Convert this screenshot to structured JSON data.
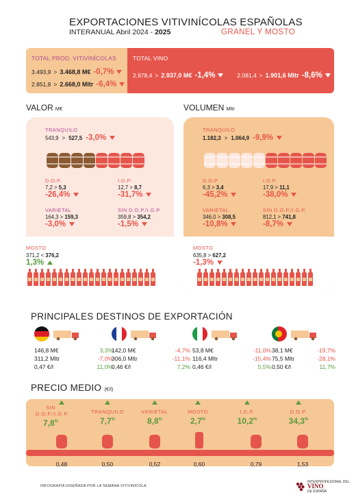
{
  "header": {
    "title": "EXPORTACIONES VITIVINÍCOLAS ESPAÑOLAS",
    "subtitle_prefix": "INTERANUAL Abril 2024 - ",
    "subtitle_year": "2025",
    "tag": "GRANEL Y MOSTO"
  },
  "totals": {
    "left": {
      "label": "TOTAL PROD. VITIVINÍCOLAS",
      "rows": [
        {
          "from": "3.493,9",
          "to": "3.468,8 M€",
          "pct": "-0,7%"
        },
        {
          "from": "2.851,8",
          "to": "2.668,0 Mltr",
          "pct": "-6,4%"
        }
      ]
    },
    "right": {
      "label": "TOTAL VINO",
      "rows": [
        {
          "from": "2.978,4",
          "to": "2.937,0 M€",
          "pct": "-1,4%"
        },
        {
          "from": "2.081,4",
          "to": "1.901,6 Mltr",
          "pct": "-8,6%"
        }
      ]
    }
  },
  "valor": {
    "heading": "VALOR",
    "unit": "M€",
    "tranquilo": {
      "label": "TRANQUILO",
      "from": "543,9",
      "to": "527,5",
      "pct": "-3,0%"
    },
    "dop": {
      "label": "D.O.P.",
      "from": "7,2",
      "to": "5,3",
      "pct": "-26,4%"
    },
    "igp": {
      "label": "I.G.P.",
      "from": "12,7",
      "to": "8,7",
      "pct": "-31,7%"
    },
    "varietal": {
      "label": "VARIETAL",
      "from": "164,3",
      "to": "159,3",
      "pct": "-3,0%"
    },
    "sin": {
      "label": "SIN D.O.P./I.G.P.",
      "from": "359,8",
      "to": "354,2",
      "pct": "-1,5%"
    },
    "mosto": {
      "label": "MOSTO",
      "from": "371,2",
      "sep": " < ",
      "to": "376,2",
      "pct": "1,3%"
    }
  },
  "volumen": {
    "heading": "VOLUMEN",
    "unit": "Mltr",
    "tranquilo": {
      "label": "TRANQUILO",
      "from": "1.182,3",
      "to": "1.064,9",
      "pct": "-9,9%"
    },
    "dop": {
      "label": "D.O.P.",
      "from": "6,3",
      "to": "3,4",
      "pct": "-45,2%"
    },
    "igp": {
      "label": "I.G.P.",
      "from": "17,9",
      "to": "11,1",
      "pct": "-38,0%"
    },
    "varietal": {
      "label": "VARIETAL",
      "from": "346,0",
      "to": "308,5",
      "pct": "-10,8%"
    },
    "sin": {
      "label": "SIN D.O.P./I.G.P.",
      "from": "812,1",
      "to": "741,8",
      "pct": "-8,7%"
    },
    "mosto": {
      "label": "MOSTO",
      "from": "635,8",
      "to": "627,2",
      "pct": "-1,3%"
    }
  },
  "destinos": {
    "heading": "PRINCIPALES DESTINOS DE EXPORTACIÓN",
    "items": [
      {
        "country": "germany",
        "value": "146,8 M€",
        "value_pct": "3,3%",
        "volume": "311,2 Mltr",
        "volume_pct": "-7,0%",
        "price": "0,47 €/l",
        "price_pct": "11,0%"
      },
      {
        "country": "france",
        "value": "142,0 M€",
        "value_pct": "-4,7%",
        "volume": "306,0 Mltr",
        "volume_pct": "-11,1%",
        "price": "0,46 €/l",
        "price_pct": "7,2%"
      },
      {
        "country": "italy",
        "value": "53,8 M€",
        "value_pct": "-11,0%",
        "volume": "116,4 Mltr",
        "volume_pct": "-15,4%",
        "price": "0,46 €/l",
        "price_pct": "5,5%"
      },
      {
        "country": "portugal",
        "value": "38,1 M€",
        "value_pct": "-19,7%",
        "volume": "75,5 Mltr",
        "volume_pct": "-28,1%",
        "price": "0,50 €/l",
        "price_pct": "11,7%"
      }
    ]
  },
  "precio": {
    "heading": "PRECIO MEDIO",
    "unit": "(€/l)",
    "items": [
      {
        "name1": "SIN",
        "name2": "D.O.P./I.G.P.",
        "pct": "7,8",
        "price": "0,48"
      },
      {
        "name1": "",
        "name2": "TRANQUILO",
        "pct": "7,7",
        "price": "0,50"
      },
      {
        "name1": "",
        "name2": "VARIETAL",
        "pct": "8,8",
        "price": "0,52"
      },
      {
        "name1": "",
        "name2": "MOSTO",
        "pct": "2,7",
        "price": "0,60"
      },
      {
        "name1": "",
        "name2": "I.G.P.",
        "pct": "10,2",
        "price": "0,79"
      },
      {
        "name1": "",
        "name2": "D.O.P.",
        "pct": "34,3",
        "price": "1,53"
      }
    ],
    "pct_sign": "%"
  },
  "footer": {
    "credit": "INFOGRAFÍA DISEÑADA POR LA SEMANA VITIVINÍCOLA",
    "logo_top": "INTERPROFESIONAL DEL",
    "logo_main": "VINO",
    "logo_bottom": "DE ESPAÑA"
  },
  "colors": {
    "red": "#e5554b",
    "orange": "#f6c896",
    "pink": "#fde8e0",
    "purple": "#b44a93",
    "green": "#5a9a3e",
    "brown": "#8b5a33"
  }
}
